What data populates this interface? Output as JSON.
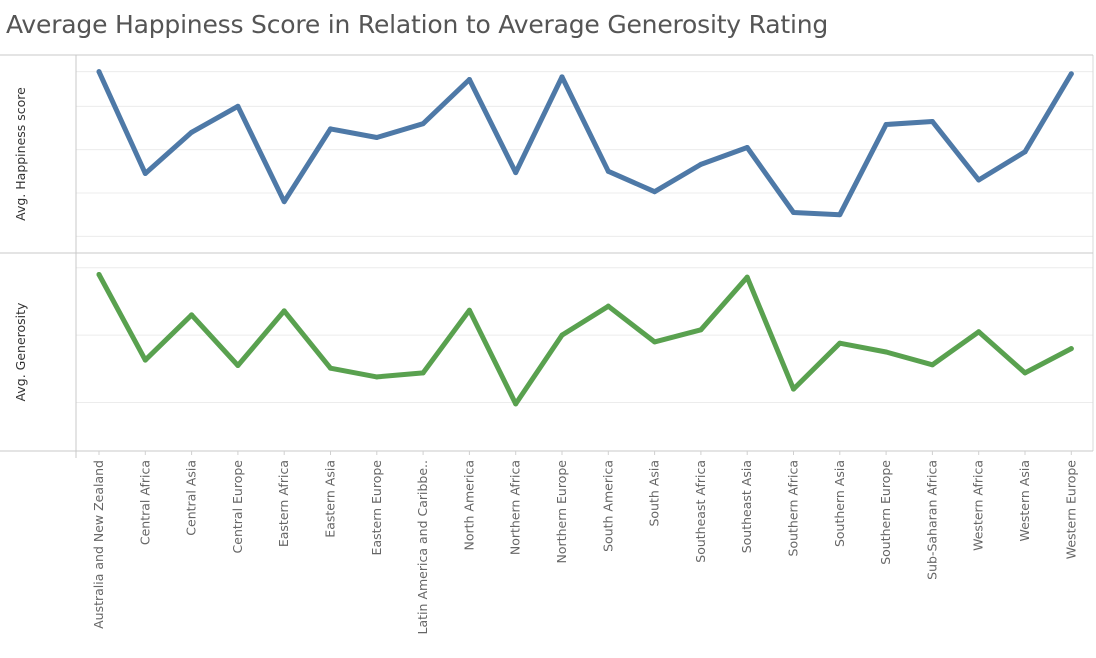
{
  "chart_data": {
    "type": "line",
    "title": "Average Happiness Score in Relation to Average Generosity Rating",
    "categories": [
      "Australia and New Zealand",
      "Central Africa",
      "Central Asia",
      "Central Europe",
      "Eastern Africa",
      "Eastern Asia",
      "Eastern Europe",
      "Latin America and Caribbe..",
      "North America",
      "Northern Africa",
      "Northern Europe",
      "South America",
      "South Asia",
      "Southeast Africa",
      "Southeast Asia",
      "Southern Africa",
      "Southern Asia",
      "Southern Europe",
      "Sub-Saharan Africa",
      "Western Africa",
      "Western Asia",
      "Western Europe"
    ],
    "panels": [
      {
        "ylabel": "Avg. Happiness score",
        "color": "#4e79a7",
        "ylim": [
          3.3,
          7.5
        ],
        "gridlines": [
          3.5,
          4.5,
          5.5,
          6.5,
          7.3
        ],
        "values": [
          7.3,
          4.95,
          5.9,
          6.5,
          4.3,
          5.98,
          5.78,
          6.1,
          7.12,
          4.97,
          7.18,
          5.0,
          4.53,
          5.16,
          5.55,
          4.05,
          4.0,
          6.08,
          6.15,
          4.8,
          5.45,
          7.25
        ]
      },
      {
        "ylabel": "Avg. Generosity",
        "color": "#59a14f",
        "ylim": [
          0.04,
          0.31
        ],
        "gridlines": [
          0.1,
          0.2,
          0.3
        ],
        "values": [
          0.29,
          0.163,
          0.23,
          0.155,
          0.236,
          0.151,
          0.138,
          0.144,
          0.237,
          0.098,
          0.2,
          0.243,
          0.19,
          0.208,
          0.286,
          0.12,
          0.188,
          0.175,
          0.156,
          0.205,
          0.144,
          0.18
        ]
      }
    ],
    "grid": true
  }
}
